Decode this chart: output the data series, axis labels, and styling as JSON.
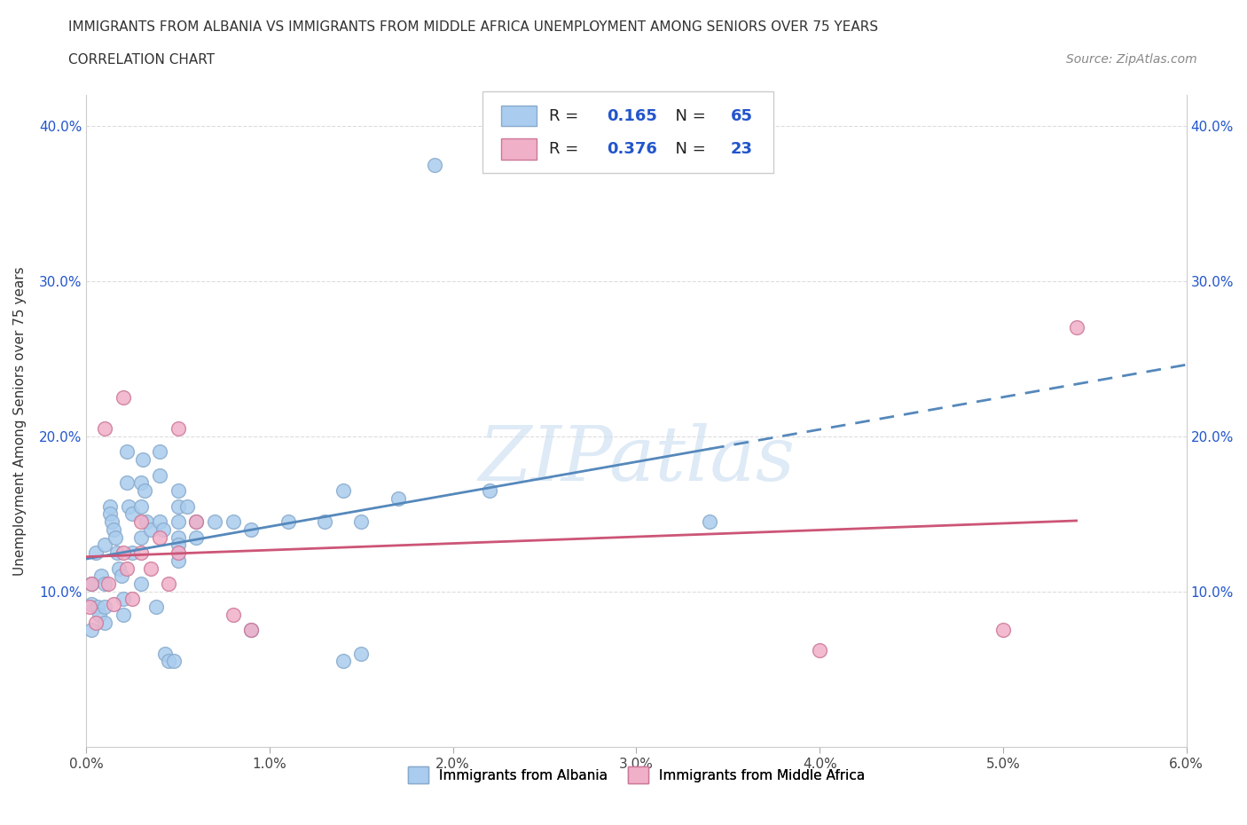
{
  "title_line1": "IMMIGRANTS FROM ALBANIA VS IMMIGRANTS FROM MIDDLE AFRICA UNEMPLOYMENT AMONG SENIORS OVER 75 YEARS",
  "title_line2": "CORRELATION CHART",
  "source_text": "Source: ZipAtlas.com",
  "ylabel": "Unemployment Among Seniors over 75 years",
  "xlim": [
    0.0,
    0.06
  ],
  "ylim": [
    0.0,
    0.42
  ],
  "xticks": [
    0.0,
    0.01,
    0.02,
    0.03,
    0.04,
    0.05,
    0.06
  ],
  "xtick_labels": [
    "0.0%",
    "1.0%",
    "2.0%",
    "3.0%",
    "4.0%",
    "5.0%",
    "6.0%"
  ],
  "yticks": [
    0.0,
    0.1,
    0.2,
    0.3,
    0.4
  ],
  "ytick_labels": [
    "",
    "10.0%",
    "20.0%",
    "30.0%",
    "40.0%"
  ],
  "albania_color": "#aaccee",
  "middle_africa_color": "#f0b0c8",
  "albania_edge_color": "#88aacc",
  "middle_africa_edge_color": "#cc7799",
  "albania_trend_color": "#5588bb",
  "middle_africa_trend_color": "#cc5577",
  "albania_R": "0.165",
  "albania_N": "65",
  "middle_africa_R": "0.376",
  "middle_africa_N": "23",
  "legend_value_color": "#2255cc",
  "legend_label_color": "#222222",
  "watermark_text": "ZIPatlas",
  "watermark_color": "#c8ddf0",
  "background_color": "#ffffff",
  "grid_color": "#dddddd",
  "albania_x": [
    0.0003,
    0.0003,
    0.0003,
    0.0005,
    0.0006,
    0.0007,
    0.0008,
    0.001,
    0.001,
    0.001,
    0.001,
    0.0013,
    0.0013,
    0.0014,
    0.0015,
    0.0016,
    0.0017,
    0.0018,
    0.0019,
    0.002,
    0.002,
    0.0022,
    0.0022,
    0.0023,
    0.0025,
    0.0025,
    0.003,
    0.003,
    0.003,
    0.003,
    0.0031,
    0.0032,
    0.0033,
    0.0035,
    0.0038,
    0.004,
    0.004,
    0.004,
    0.0042,
    0.0043,
    0.0045,
    0.0048,
    0.005,
    0.005,
    0.005,
    0.005,
    0.005,
    0.005,
    0.0055,
    0.006,
    0.006,
    0.007,
    0.008,
    0.009,
    0.009,
    0.011,
    0.013,
    0.014,
    0.014,
    0.015,
    0.015,
    0.017,
    0.019,
    0.022,
    0.034
  ],
  "albania_y": [
    0.105,
    0.092,
    0.075,
    0.125,
    0.09,
    0.085,
    0.11,
    0.13,
    0.105,
    0.09,
    0.08,
    0.155,
    0.15,
    0.145,
    0.14,
    0.135,
    0.125,
    0.115,
    0.11,
    0.095,
    0.085,
    0.19,
    0.17,
    0.155,
    0.15,
    0.125,
    0.17,
    0.155,
    0.135,
    0.105,
    0.185,
    0.165,
    0.145,
    0.14,
    0.09,
    0.19,
    0.175,
    0.145,
    0.14,
    0.06,
    0.055,
    0.055,
    0.165,
    0.155,
    0.145,
    0.135,
    0.13,
    0.12,
    0.155,
    0.145,
    0.135,
    0.145,
    0.145,
    0.14,
    0.075,
    0.145,
    0.145,
    0.165,
    0.055,
    0.06,
    0.145,
    0.16,
    0.375,
    0.165,
    0.145
  ],
  "middle_africa_x": [
    0.0002,
    0.0003,
    0.0005,
    0.001,
    0.0012,
    0.0015,
    0.002,
    0.002,
    0.0022,
    0.0025,
    0.003,
    0.003,
    0.0035,
    0.004,
    0.0045,
    0.005,
    0.005,
    0.006,
    0.008,
    0.009,
    0.04,
    0.05,
    0.054
  ],
  "middle_africa_y": [
    0.09,
    0.105,
    0.08,
    0.205,
    0.105,
    0.092,
    0.225,
    0.125,
    0.115,
    0.095,
    0.145,
    0.125,
    0.115,
    0.135,
    0.105,
    0.205,
    0.125,
    0.145,
    0.085,
    0.075,
    0.062,
    0.075,
    0.27
  ]
}
